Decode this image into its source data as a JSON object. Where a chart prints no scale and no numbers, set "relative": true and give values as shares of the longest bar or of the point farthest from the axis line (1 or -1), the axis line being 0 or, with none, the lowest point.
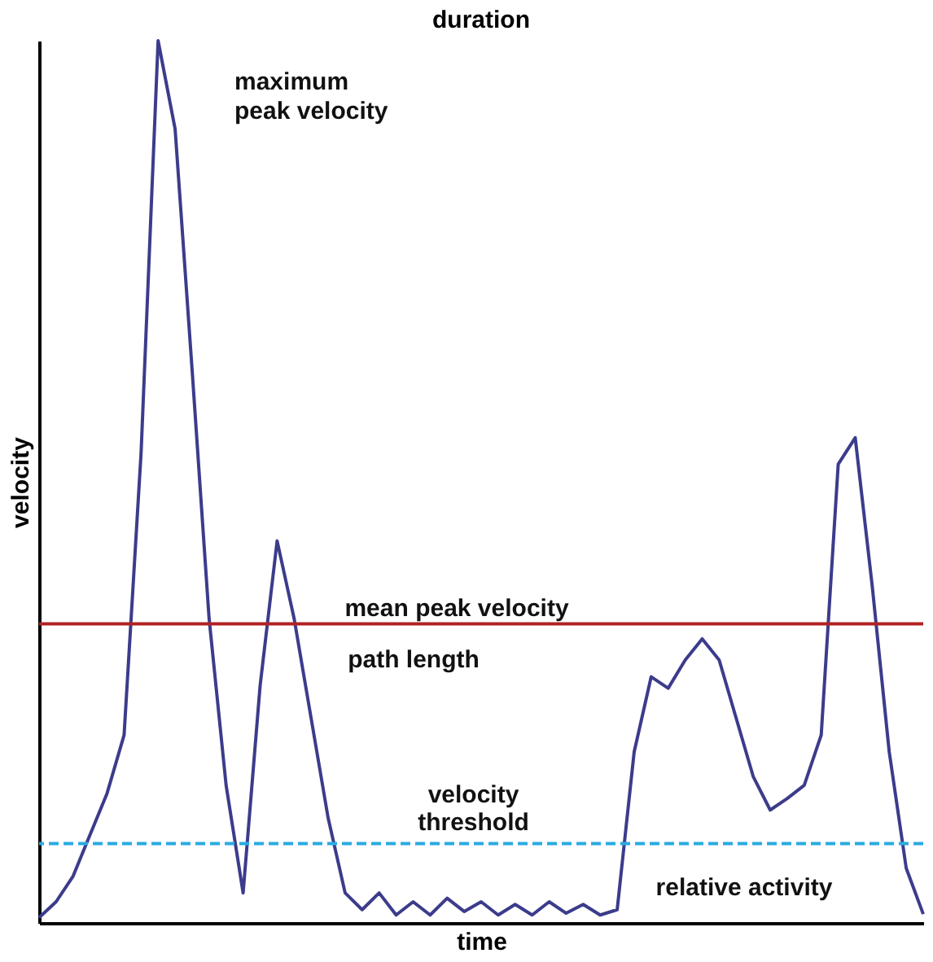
{
  "chart_data": {
    "type": "line",
    "relative": true,
    "title": "duration",
    "xlabel": "time",
    "ylabel": "velocity",
    "tick_labels": false,
    "grid": false,
    "marker": "none",
    "line_style": "solid",
    "categories": [
      null,
      null,
      null,
      null,
      null,
      null,
      null,
      null,
      null,
      null,
      null,
      null,
      null,
      null,
      null,
      null,
      null,
      null,
      null,
      null,
      null,
      null,
      null,
      null,
      null,
      null,
      null,
      null,
      null,
      null,
      null,
      null,
      null,
      null,
      null,
      null,
      null,
      null,
      null,
      null,
      null,
      null,
      null,
      null,
      null,
      null,
      null,
      null,
      null,
      null,
      null,
      null,
      null
    ],
    "series": [
      {
        "color": "#3c3c8c",
        "values": [
          0.006,
          0.024,
          0.053,
          0.1,
          0.147,
          0.213,
          0.533,
          1.0,
          0.9,
          0.627,
          0.345,
          0.156,
          0.034,
          0.269,
          0.433,
          0.345,
          0.232,
          0.119,
          0.034,
          0.015,
          0.034,
          0.009,
          0.024,
          0.009,
          0.028,
          0.013,
          0.024,
          0.009,
          0.021,
          0.009,
          0.024,
          0.011,
          0.021,
          0.009,
          0.015,
          0.194,
          0.279,
          0.266,
          0.298,
          0.322,
          0.298,
          0.232,
          0.166,
          0.128,
          0.141,
          0.156,
          0.213,
          0.52,
          0.55,
          0.382,
          0.194,
          0.062,
          0.01
        ]
      }
    ],
    "ref_lines": [
      {
        "axis": "y",
        "value": 0.339,
        "label": "mean peak velocity",
        "color": "#b22222",
        "line_style": "solid"
      },
      {
        "axis": "y",
        "value": 0.09,
        "label": "velocity threshold",
        "color": "#29abe2",
        "line_style": "dashed"
      }
    ],
    "annotations": [
      "maximum peak velocity",
      "path length",
      "relative activity"
    ]
  }
}
